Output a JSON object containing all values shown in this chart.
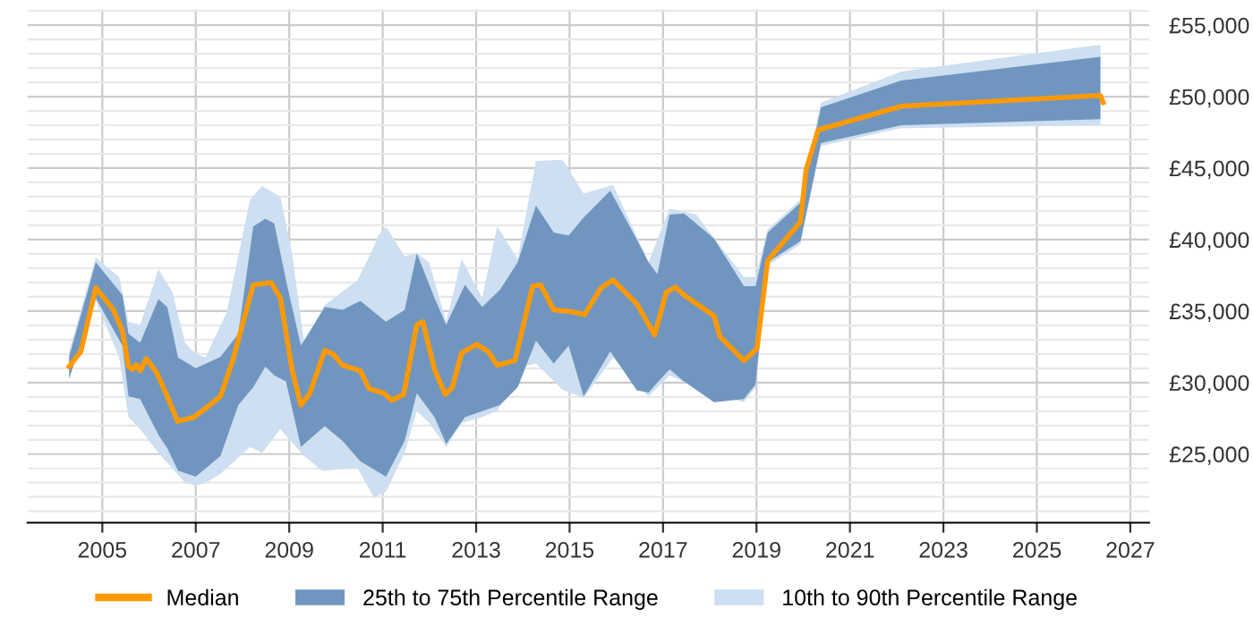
{
  "chart_data": {
    "type": "line",
    "xlim": [
      2003.4,
      2027.4
    ],
    "ylim": [
      20200,
      56100
    ],
    "xticks": [
      2005,
      2007,
      2009,
      2011,
      2013,
      2015,
      2017,
      2019,
      2021,
      2023,
      2025,
      2027
    ],
    "yticks": [
      {
        "value": 21000,
        "label": null
      },
      {
        "value": 22000,
        "label": null
      },
      {
        "value": 23000,
        "label": null
      },
      {
        "value": 24000,
        "label": null
      },
      {
        "value": 25000,
        "label": "£25,000"
      },
      {
        "value": 26000,
        "label": null
      },
      {
        "value": 27000,
        "label": null
      },
      {
        "value": 28000,
        "label": null
      },
      {
        "value": 29000,
        "label": null
      },
      {
        "value": 30000,
        "label": "£30,000"
      },
      {
        "value": 31000,
        "label": null
      },
      {
        "value": 32000,
        "label": null
      },
      {
        "value": 33000,
        "label": null
      },
      {
        "value": 34000,
        "label": null
      },
      {
        "value": 35000,
        "label": "£35,000"
      },
      {
        "value": 36000,
        "label": null
      },
      {
        "value": 37000,
        "label": null
      },
      {
        "value": 38000,
        "label": null
      },
      {
        "value": 39000,
        "label": null
      },
      {
        "value": 40000,
        "label": "£40,000"
      },
      {
        "value": 41000,
        "label": null
      },
      {
        "value": 42000,
        "label": null
      },
      {
        "value": 43000,
        "label": null
      },
      {
        "value": 44000,
        "label": null
      },
      {
        "value": 45000,
        "label": "£45,000"
      },
      {
        "value": 46000,
        "label": null
      },
      {
        "value": 47000,
        "label": null
      },
      {
        "value": 48000,
        "label": null
      },
      {
        "value": 49000,
        "label": null
      },
      {
        "value": 50000,
        "label": "£50,000"
      },
      {
        "value": 51000,
        "label": null
      },
      {
        "value": 52000,
        "label": null
      },
      {
        "value": 53000,
        "label": null
      },
      {
        "value": 54000,
        "label": null
      },
      {
        "value": 55000,
        "label": "£55,000"
      },
      {
        "value": 56000,
        "label": null
      }
    ],
    "grid": true,
    "legend": "bottom",
    "marker": "none",
    "line_style": "solid",
    "series": [
      {
        "name": "Median",
        "color": "#ff9900",
        "x": [
          2004.29,
          2004.54,
          2004.86,
          2005.24,
          2005.43,
          2005.56,
          2005.65,
          2005.73,
          2005.81,
          2005.94,
          2006.16,
          2006.39,
          2006.61,
          2006.96,
          2007.21,
          2007.53,
          2007.79,
          2008.23,
          2008.61,
          2008.81,
          2009.06,
          2009.25,
          2009.44,
          2009.76,
          2009.95,
          2010.14,
          2010.52,
          2010.71,
          2011.03,
          2011.19,
          2011.45,
          2011.73,
          2011.86,
          2012.11,
          2012.34,
          2012.49,
          2012.69,
          2013.01,
          2013.26,
          2013.45,
          2013.83,
          2014.21,
          2014.38,
          2014.66,
          2015.04,
          2015.32,
          2015.67,
          2015.93,
          2016.44,
          2016.82,
          2017.07,
          2017.26,
          2017.45,
          2018.09,
          2018.22,
          2018.73,
          2019.01,
          2019.24,
          2019.94,
          2020.06,
          2020.32,
          2020.76,
          2022.1,
          2026.36,
          2026.42
        ],
        "values": [
          31125,
          32170,
          36625,
          35080,
          33625,
          31125,
          30920,
          31250,
          30830,
          31670,
          30710,
          29040,
          27290,
          27580,
          28210,
          29040,
          31540,
          36830,
          37000,
          35920,
          30920,
          28420,
          29250,
          32250,
          31960,
          31210,
          30830,
          29580,
          29250,
          28750,
          29170,
          34040,
          34250,
          30920,
          29170,
          29670,
          32080,
          32670,
          32170,
          31210,
          31540,
          36750,
          36830,
          35080,
          34960,
          34750,
          36620,
          37170,
          35500,
          33330,
          36330,
          36670,
          36120,
          34670,
          33210,
          31540,
          32370,
          38540,
          41250,
          44870,
          47670,
          48080,
          49330,
          50080,
          49580
        ]
      },
      {
        "name": "25th to 75th Percentile Range",
        "type": "area",
        "color": "#7096c0",
        "x": [
          2004.29,
          2004.86,
          2005.43,
          2005.56,
          2005.81,
          2006.2,
          2006.39,
          2006.62,
          2007.0,
          2007.53,
          2007.91,
          2008.23,
          2008.49,
          2008.68,
          2008.93,
          2009.25,
          2009.76,
          2010.14,
          2010.52,
          2011.07,
          2011.47,
          2011.73,
          2012.11,
          2012.36,
          2012.76,
          2013.13,
          2013.51,
          2013.89,
          2014.28,
          2014.66,
          2014.98,
          2015.3,
          2015.87,
          2016.44,
          2016.69,
          2016.88,
          2017.14,
          2017.45,
          2018.09,
          2018.73,
          2018.98,
          2019.24,
          2019.94,
          2020.38,
          2022.1,
          2026.36
        ],
        "values": [
          null,
          null,
          null,
          null,
          null,
          null,
          null,
          null,
          null,
          null,
          null,
          null,
          null,
          null,
          null,
          null,
          null,
          null,
          null,
          null,
          null,
          null,
          null,
          null,
          null,
          null,
          null,
          null,
          null,
          null,
          null,
          null,
          null,
          null,
          null,
          null,
          null,
          null,
          null,
          null,
          null,
          null,
          null,
          null,
          null,
          null
        ],
        "upper": [
          31830,
          38420,
          36125,
          33420,
          32790,
          35830,
          35290,
          31750,
          31000,
          31800,
          33420,
          40920,
          41460,
          41120,
          37170,
          32580,
          35290,
          35080,
          35710,
          34250,
          35080,
          39040,
          35920,
          34040,
          36830,
          35290,
          36500,
          38420,
          42380,
          40500,
          40290,
          41540,
          43420,
          40000,
          38420,
          37580,
          41750,
          41830,
          40080,
          36750,
          36750,
          40500,
          42580,
          49250,
          51120,
          52790
        ],
        "lower": [
          30290,
          35920,
          32580,
          29040,
          28840,
          26340,
          25400,
          23840,
          23420,
          24880,
          28420,
          29670,
          31120,
          30500,
          30080,
          25500,
          26960,
          25920,
          24500,
          23420,
          25920,
          29250,
          27580,
          25710,
          27580,
          28000,
          28420,
          29670,
          32920,
          31340,
          32580,
          29040,
          32170,
          29460,
          29300,
          30000,
          30920,
          30080,
          28620,
          28840,
          29870,
          38420,
          39880,
          46750,
          48000,
          48420
        ]
      },
      {
        "name": "10th to 90th Percentile Range",
        "type": "area",
        "color": "#cddff0",
        "x": [
          2004.29,
          2004.86,
          2005.36,
          2005.56,
          2005.81,
          2006.2,
          2006.5,
          2006.77,
          2007.0,
          2007.21,
          2007.53,
          2007.66,
          2008.16,
          2008.42,
          2008.81,
          2009.06,
          2009.32,
          2009.7,
          2009.76,
          2010.46,
          2010.81,
          2010.91,
          2011.07,
          2011.47,
          2011.73,
          2011.99,
          2012.36,
          2012.69,
          2013.13,
          2013.45,
          2013.89,
          2014.28,
          2014.85,
          2015.3,
          2015.93,
          2016.69,
          2017.14,
          2017.71,
          2018.73,
          2018.98,
          2019.24,
          2019.94,
          2020.38,
          2022.1,
          2026.36
        ],
        "values": [
          null,
          null,
          null,
          null,
          null,
          null,
          null,
          null,
          null,
          null,
          null,
          null,
          null,
          null,
          null,
          null,
          null,
          null,
          null,
          null,
          null,
          null,
          null,
          null,
          null,
          null,
          null,
          null,
          null,
          null,
          null,
          null,
          null,
          null,
          null,
          null,
          null,
          null,
          null,
          null,
          null,
          null,
          null,
          null,
          null
        ],
        "upper": [
          32170,
          38750,
          37380,
          34250,
          34040,
          37920,
          36330,
          32790,
          32000,
          31750,
          34000,
          34880,
          42790,
          43750,
          43000,
          39040,
          32790,
          35000,
          35420,
          37170,
          39500,
          40290,
          40920,
          38830,
          39040,
          38420,
          34250,
          38630,
          35920,
          40920,
          38630,
          45500,
          45580,
          43210,
          43830,
          38420,
          42170,
          41750,
          37380,
          37380,
          40710,
          42800,
          49580,
          51750,
          53630
        ],
        "lower": [
          30290,
          35710,
          31750,
          27580,
          26750,
          25080,
          24000,
          23000,
          22790,
          23000,
          23620,
          24000,
          25500,
          25080,
          26750,
          25800,
          24880,
          23840,
          23850,
          24040,
          21960,
          22100,
          22380,
          25080,
          28000,
          27200,
          25500,
          27170,
          27600,
          28000,
          31000,
          31340,
          29500,
          28920,
          31750,
          29040,
          30500,
          29670,
          28620,
          29670,
          38210,
          39670,
          46540,
          47790,
          48000
        ]
      }
    ]
  }
}
